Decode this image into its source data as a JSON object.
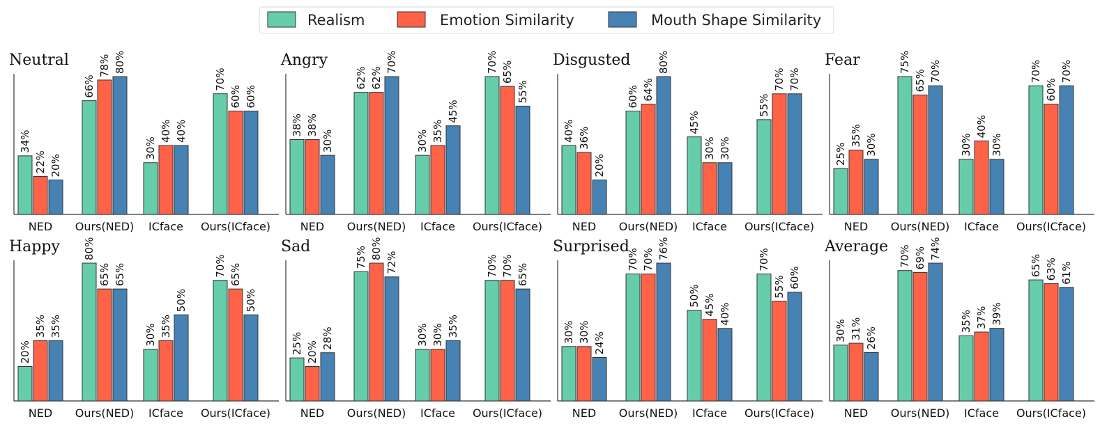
{
  "chart_data": {
    "type": "bar",
    "legend": {
      "position": "top-center",
      "entries": [
        {
          "name": "Realism",
          "color": "#66CDAA"
        },
        {
          "name": "Emotion Similarity",
          "color": "#FF6347"
        },
        {
          "name": "Mouth Shape Similarity",
          "color": "#4682B4"
        }
      ]
    },
    "categories": [
      "NED",
      "Ours(NED)",
      "ICface",
      "Ours(ICface)"
    ],
    "value_suffix": "%",
    "panels": [
      {
        "title": "Neutral",
        "ymax": 80,
        "series": [
          [
            34,
            66,
            30,
            70
          ],
          [
            22,
            78,
            40,
            60
          ],
          [
            20,
            80,
            40,
            60
          ]
        ]
      },
      {
        "title": "Angry",
        "ymax": 70,
        "series": [
          [
            38,
            62,
            30,
            70
          ],
          [
            38,
            62,
            35,
            65
          ],
          [
            30,
            70,
            45,
            55
          ]
        ]
      },
      {
        "title": "Disgusted",
        "ymax": 80,
        "series": [
          [
            40,
            60,
            45,
            55
          ],
          [
            36,
            64,
            30,
            70
          ],
          [
            20,
            80,
            30,
            70
          ]
        ]
      },
      {
        "title": "Fear",
        "ymax": 75,
        "series": [
          [
            25,
            75,
            30,
            70
          ],
          [
            35,
            65,
            40,
            60
          ],
          [
            30,
            70,
            30,
            70
          ]
        ]
      },
      {
        "title": "Happy",
        "ymax": 80,
        "series": [
          [
            20,
            80,
            30,
            70
          ],
          [
            35,
            65,
            35,
            65
          ],
          [
            35,
            65,
            50,
            50
          ]
        ]
      },
      {
        "title": "Sad",
        "ymax": 80,
        "series": [
          [
            25,
            75,
            30,
            70
          ],
          [
            20,
            80,
            30,
            70
          ],
          [
            28,
            72,
            35,
            65
          ]
        ]
      },
      {
        "title": "Surprised",
        "ymax": 76,
        "series": [
          [
            30,
            70,
            50,
            70
          ],
          [
            30,
            70,
            45,
            55
          ],
          [
            24,
            76,
            40,
            60
          ]
        ]
      },
      {
        "title": "Average",
        "ymax": 74,
        "series": [
          [
            30,
            70,
            35,
            65
          ],
          [
            31,
            69,
            37,
            63
          ],
          [
            26,
            74,
            39,
            61
          ]
        ]
      }
    ]
  }
}
